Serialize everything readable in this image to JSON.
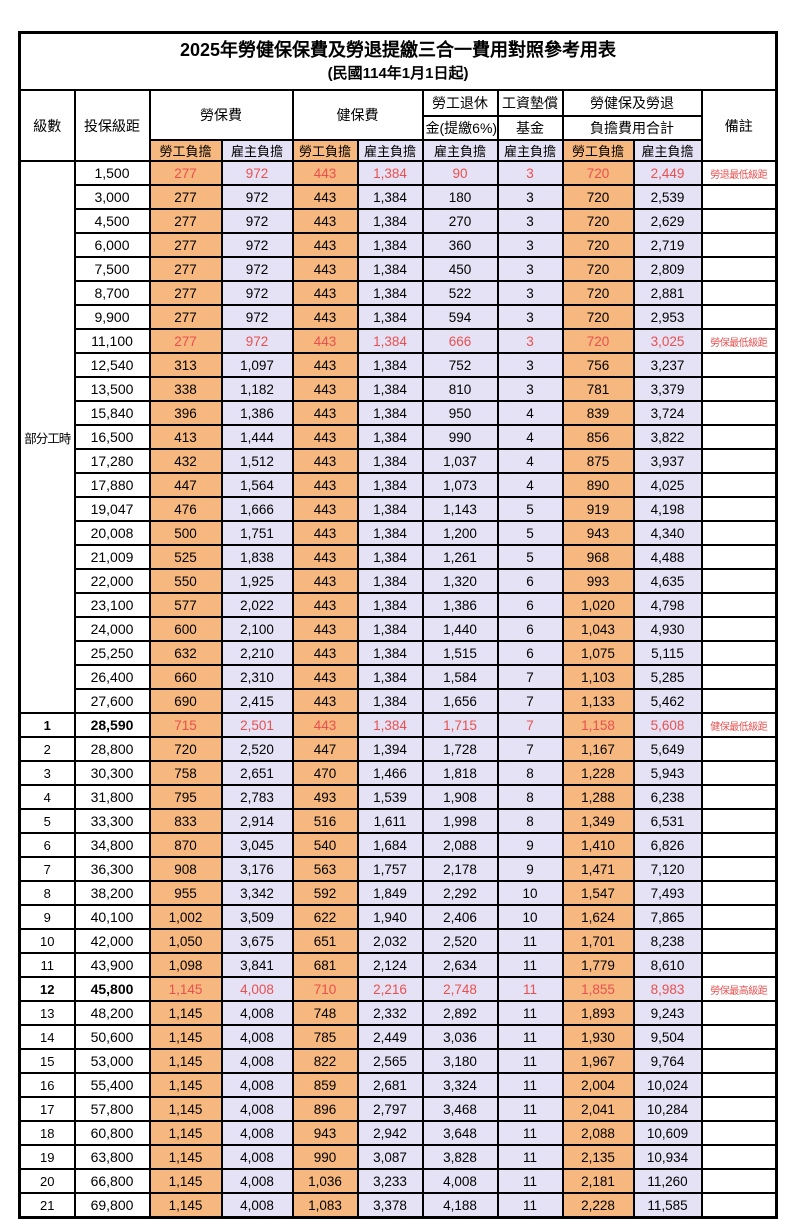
{
  "title": "2025年勞健保保費及勞退提繳三合一費用對照參考用表",
  "subtitle": "(民國114年1月1日起)",
  "colors": {
    "employee_column_bg": "#f6b87e",
    "employer_column_bg": "#e4e2f4",
    "highlight_text": "#e85050",
    "grid": "#000000",
    "page_bg": "#ffffff"
  },
  "header": {
    "level": "級數",
    "bracket": "投保級距",
    "labor_insurance": "勞保費",
    "health_insurance": "健保費",
    "pension_line1": "勞工退休",
    "pension_line2": "金(提繳6%)",
    "wage_fund_line1": "工資墊償",
    "wage_fund_line2": "基金",
    "total_line1": "勞健保及勞退",
    "total_line2": "負擔費用合計",
    "remark": "備註",
    "employee": "勞工負擔",
    "employer": "雇主負擔"
  },
  "table": {
    "part_time_label": "部分工時",
    "value_columns": [
      "labor_ins_employee",
      "labor_ins_employer",
      "health_ins_employee",
      "health_ins_employer",
      "pension_employer",
      "wage_fund_employer",
      "total_employee",
      "total_employer"
    ],
    "rows": [
      {
        "span": 23,
        "level": null,
        "bracket": "1,500",
        "vals": [
          "277",
          "972",
          "443",
          "1,384",
          "90",
          "3",
          "720",
          "2,449"
        ],
        "remark": "勞退最低級距",
        "hl": true
      },
      {
        "level": null,
        "bracket": "3,000",
        "vals": [
          "277",
          "972",
          "443",
          "1,384",
          "180",
          "3",
          "720",
          "2,539"
        ]
      },
      {
        "level": null,
        "bracket": "4,500",
        "vals": [
          "277",
          "972",
          "443",
          "1,384",
          "270",
          "3",
          "720",
          "2,629"
        ]
      },
      {
        "level": null,
        "bracket": "6,000",
        "vals": [
          "277",
          "972",
          "443",
          "1,384",
          "360",
          "3",
          "720",
          "2,719"
        ]
      },
      {
        "level": null,
        "bracket": "7,500",
        "vals": [
          "277",
          "972",
          "443",
          "1,384",
          "450",
          "3",
          "720",
          "2,809"
        ]
      },
      {
        "level": null,
        "bracket": "8,700",
        "vals": [
          "277",
          "972",
          "443",
          "1,384",
          "522",
          "3",
          "720",
          "2,881"
        ]
      },
      {
        "level": null,
        "bracket": "9,900",
        "vals": [
          "277",
          "972",
          "443",
          "1,384",
          "594",
          "3",
          "720",
          "2,953"
        ]
      },
      {
        "level": null,
        "bracket": "11,100",
        "vals": [
          "277",
          "972",
          "443",
          "1,384",
          "666",
          "3",
          "720",
          "3,025"
        ],
        "remark": "勞保最低級距",
        "hl": true
      },
      {
        "level": null,
        "bracket": "12,540",
        "vals": [
          "313",
          "1,097",
          "443",
          "1,384",
          "752",
          "3",
          "756",
          "3,237"
        ]
      },
      {
        "level": null,
        "bracket": "13,500",
        "vals": [
          "338",
          "1,182",
          "443",
          "1,384",
          "810",
          "3",
          "781",
          "3,379"
        ]
      },
      {
        "level": null,
        "bracket": "15,840",
        "vals": [
          "396",
          "1,386",
          "443",
          "1,384",
          "950",
          "4",
          "839",
          "3,724"
        ]
      },
      {
        "level": null,
        "bracket": "16,500",
        "vals": [
          "413",
          "1,444",
          "443",
          "1,384",
          "990",
          "4",
          "856",
          "3,822"
        ]
      },
      {
        "level": null,
        "bracket": "17,280",
        "vals": [
          "432",
          "1,512",
          "443",
          "1,384",
          "1,037",
          "4",
          "875",
          "3,937"
        ]
      },
      {
        "level": null,
        "bracket": "17,880",
        "vals": [
          "447",
          "1,564",
          "443",
          "1,384",
          "1,073",
          "4",
          "890",
          "4,025"
        ]
      },
      {
        "level": null,
        "bracket": "19,047",
        "vals": [
          "476",
          "1,666",
          "443",
          "1,384",
          "1,143",
          "5",
          "919",
          "4,198"
        ]
      },
      {
        "level": null,
        "bracket": "20,008",
        "vals": [
          "500",
          "1,751",
          "443",
          "1,384",
          "1,200",
          "5",
          "943",
          "4,340"
        ]
      },
      {
        "level": null,
        "bracket": "21,009",
        "vals": [
          "525",
          "1,838",
          "443",
          "1,384",
          "1,261",
          "5",
          "968",
          "4,488"
        ]
      },
      {
        "level": null,
        "bracket": "22,000",
        "vals": [
          "550",
          "1,925",
          "443",
          "1,384",
          "1,320",
          "6",
          "993",
          "4,635"
        ]
      },
      {
        "level": null,
        "bracket": "23,100",
        "vals": [
          "577",
          "2,022",
          "443",
          "1,384",
          "1,386",
          "6",
          "1,020",
          "4,798"
        ]
      },
      {
        "level": null,
        "bracket": "24,000",
        "vals": [
          "600",
          "2,100",
          "443",
          "1,384",
          "1,440",
          "6",
          "1,043",
          "4,930"
        ]
      },
      {
        "level": null,
        "bracket": "25,250",
        "vals": [
          "632",
          "2,210",
          "443",
          "1,384",
          "1,515",
          "6",
          "1,075",
          "5,115"
        ]
      },
      {
        "level": null,
        "bracket": "26,400",
        "vals": [
          "660",
          "2,310",
          "443",
          "1,384",
          "1,584",
          "7",
          "1,103",
          "5,285"
        ]
      },
      {
        "level": null,
        "bracket": "27,600",
        "vals": [
          "690",
          "2,415",
          "443",
          "1,384",
          "1,656",
          "7",
          "1,133",
          "5,462"
        ]
      },
      {
        "level": "1",
        "bracket": "28,590",
        "vals": [
          "715",
          "2,501",
          "443",
          "1,384",
          "1,715",
          "7",
          "1,158",
          "5,608"
        ],
        "remark": "健保最低級距",
        "hl": true,
        "bold": true
      },
      {
        "level": "2",
        "bracket": "28,800",
        "vals": [
          "720",
          "2,520",
          "447",
          "1,394",
          "1,728",
          "7",
          "1,167",
          "5,649"
        ]
      },
      {
        "level": "3",
        "bracket": "30,300",
        "vals": [
          "758",
          "2,651",
          "470",
          "1,466",
          "1,818",
          "8",
          "1,228",
          "5,943"
        ]
      },
      {
        "level": "4",
        "bracket": "31,800",
        "vals": [
          "795",
          "2,783",
          "493",
          "1,539",
          "1,908",
          "8",
          "1,288",
          "6,238"
        ]
      },
      {
        "level": "5",
        "bracket": "33,300",
        "vals": [
          "833",
          "2,914",
          "516",
          "1,611",
          "1,998",
          "8",
          "1,349",
          "6,531"
        ]
      },
      {
        "level": "6",
        "bracket": "34,800",
        "vals": [
          "870",
          "3,045",
          "540",
          "1,684",
          "2,088",
          "9",
          "1,410",
          "6,826"
        ]
      },
      {
        "level": "7",
        "bracket": "36,300",
        "vals": [
          "908",
          "3,176",
          "563",
          "1,757",
          "2,178",
          "9",
          "1,471",
          "7,120"
        ]
      },
      {
        "level": "8",
        "bracket": "38,200",
        "vals": [
          "955",
          "3,342",
          "592",
          "1,849",
          "2,292",
          "10",
          "1,547",
          "7,493"
        ]
      },
      {
        "level": "9",
        "bracket": "40,100",
        "vals": [
          "1,002",
          "3,509",
          "622",
          "1,940",
          "2,406",
          "10",
          "1,624",
          "7,865"
        ]
      },
      {
        "level": "10",
        "bracket": "42,000",
        "vals": [
          "1,050",
          "3,675",
          "651",
          "2,032",
          "2,520",
          "11",
          "1,701",
          "8,238"
        ]
      },
      {
        "level": "11",
        "bracket": "43,900",
        "vals": [
          "1,098",
          "3,841",
          "681",
          "2,124",
          "2,634",
          "11",
          "1,779",
          "8,610"
        ]
      },
      {
        "level": "12",
        "bracket": "45,800",
        "vals": [
          "1,145",
          "4,008",
          "710",
          "2,216",
          "2,748",
          "11",
          "1,855",
          "8,983"
        ],
        "remark": "勞保最高級距",
        "hl": true,
        "bold": true
      },
      {
        "level": "13",
        "bracket": "48,200",
        "vals": [
          "1,145",
          "4,008",
          "748",
          "2,332",
          "2,892",
          "11",
          "1,893",
          "9,243"
        ]
      },
      {
        "level": "14",
        "bracket": "50,600",
        "vals": [
          "1,145",
          "4,008",
          "785",
          "2,449",
          "3,036",
          "11",
          "1,930",
          "9,504"
        ]
      },
      {
        "level": "15",
        "bracket": "53,000",
        "vals": [
          "1,145",
          "4,008",
          "822",
          "2,565",
          "3,180",
          "11",
          "1,967",
          "9,764"
        ]
      },
      {
        "level": "16",
        "bracket": "55,400",
        "vals": [
          "1,145",
          "4,008",
          "859",
          "2,681",
          "3,324",
          "11",
          "2,004",
          "10,024"
        ]
      },
      {
        "level": "17",
        "bracket": "57,800",
        "vals": [
          "1,145",
          "4,008",
          "896",
          "2,797",
          "3,468",
          "11",
          "2,041",
          "10,284"
        ]
      },
      {
        "level": "18",
        "bracket": "60,800",
        "vals": [
          "1,145",
          "4,008",
          "943",
          "2,942",
          "3,648",
          "11",
          "2,088",
          "10,609"
        ]
      },
      {
        "level": "19",
        "bracket": "63,800",
        "vals": [
          "1,145",
          "4,008",
          "990",
          "3,087",
          "3,828",
          "11",
          "2,135",
          "10,934"
        ]
      },
      {
        "level": "20",
        "bracket": "66,800",
        "vals": [
          "1,145",
          "4,008",
          "1,036",
          "3,233",
          "4,008",
          "11",
          "2,181",
          "11,260"
        ]
      },
      {
        "level": "21",
        "bracket": "69,800",
        "vals": [
          "1,145",
          "4,008",
          "1,083",
          "3,378",
          "4,188",
          "11",
          "2,228",
          "11,585"
        ]
      }
    ]
  }
}
